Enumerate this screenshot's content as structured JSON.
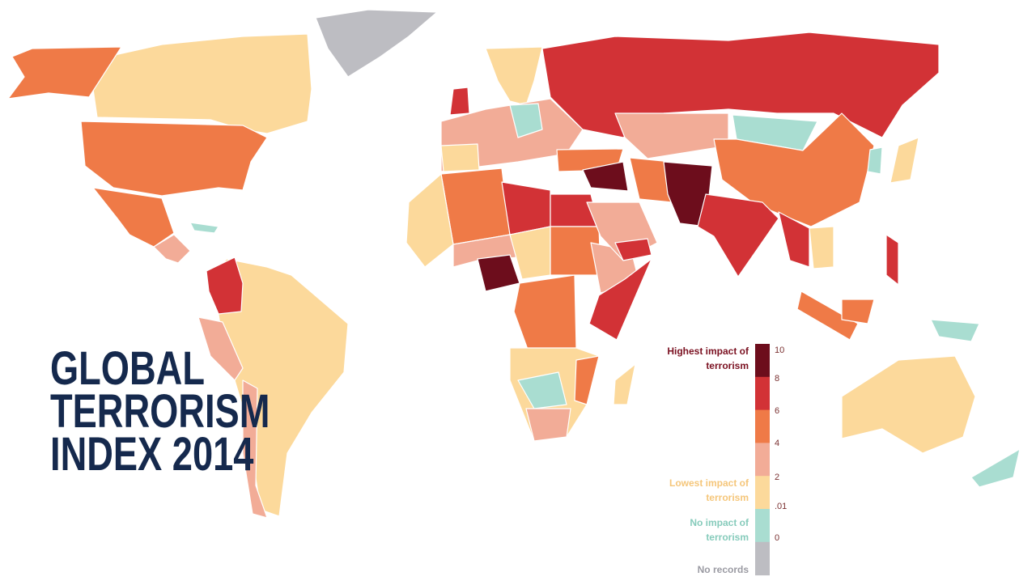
{
  "title": [
    "GLOBAL",
    "TERRORISM",
    "INDEX 2014"
  ],
  "legend": {
    "ticks": [
      10,
      8,
      6,
      4,
      2,
      {
        "value": 0.01,
        "label": ".01"
      },
      0
    ],
    "colors": [
      "#6d0d1c",
      "#d23236",
      "#ef7a47",
      "#f2ac97",
      "#fcd99b",
      "#a9ddd1",
      "#bdbdc2"
    ],
    "labels": [
      {
        "text": "Highest impact of terrorism",
        "color": "#7a1020"
      },
      {
        "text": "Lowest impact of terrorism",
        "color": "#f5c67a"
      },
      {
        "text": "No impact of terrorism",
        "color": "#86cbbb"
      },
      {
        "text": "No records",
        "color": "#9a9aa2"
      }
    ]
  }
}
